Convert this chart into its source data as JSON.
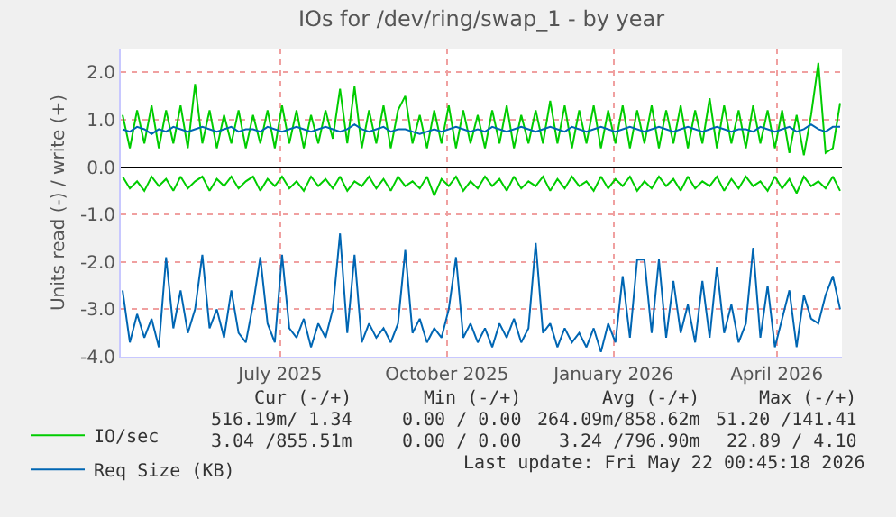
{
  "chart_data": {
    "type": "line",
    "title": "IOs for /dev/ring/swap_1 - by year",
    "ylabel": "Units read (-) / write (+)",
    "x": [
      "2025-04-20",
      "2025-04-24",
      "2025-04-28",
      "2025-05-02",
      "2025-05-06",
      "2025-05-10",
      "2025-05-14",
      "2025-05-18",
      "2025-05-22",
      "2025-05-26",
      "2025-05-30",
      "2025-06-03",
      "2025-06-07",
      "2025-06-11",
      "2025-06-15",
      "2025-06-19",
      "2025-06-23",
      "2025-06-27",
      "2025-07-01",
      "2025-07-05",
      "2025-07-09",
      "2025-07-13",
      "2025-07-17",
      "2025-07-21",
      "2025-07-25",
      "2025-07-29",
      "2025-08-02",
      "2025-08-06",
      "2025-08-10",
      "2025-08-14",
      "2025-08-18",
      "2025-08-22",
      "2025-08-26",
      "2025-08-30",
      "2025-09-03",
      "2025-09-07",
      "2025-09-11",
      "2025-09-15",
      "2025-09-19",
      "2025-09-23",
      "2025-09-27",
      "2025-10-01",
      "2025-10-05",
      "2025-10-09",
      "2025-10-13",
      "2025-10-17",
      "2025-10-21",
      "2025-10-25",
      "2025-10-29",
      "2025-11-02",
      "2025-11-06",
      "2025-11-10",
      "2025-11-14",
      "2025-11-18",
      "2025-11-22",
      "2025-11-26",
      "2025-11-30",
      "2025-12-04",
      "2025-12-08",
      "2025-12-12",
      "2025-12-16",
      "2025-12-20",
      "2025-12-24",
      "2025-12-28",
      "2026-01-01",
      "2026-01-05",
      "2026-01-09",
      "2026-01-13",
      "2026-01-17",
      "2026-01-21",
      "2026-01-25",
      "2026-01-29",
      "2026-02-02",
      "2026-02-06",
      "2026-02-10",
      "2026-02-14",
      "2026-02-18",
      "2026-02-22",
      "2026-02-26",
      "2026-03-02",
      "2026-03-06",
      "2026-03-10",
      "2026-03-14",
      "2026-03-18",
      "2026-03-22",
      "2026-03-26",
      "2026-03-30",
      "2026-04-03",
      "2026-04-07",
      "2026-04-11",
      "2026-04-15",
      "2026-04-19",
      "2026-04-23",
      "2026-04-27",
      "2026-05-01",
      "2026-05-05",
      "2026-05-09",
      "2026-05-13",
      "2026-05-17",
      "2026-05-21"
    ],
    "series": [
      {
        "name": "IO/sec",
        "color": "#00cc00",
        "values": [
          1.1,
          0.4,
          1.2,
          0.5,
          1.3,
          0.4,
          1.2,
          0.5,
          1.3,
          0.4,
          1.75,
          0.5,
          1.2,
          0.4,
          1.1,
          0.5,
          1.2,
          0.4,
          1.1,
          0.5,
          1.2,
          0.4,
          1.3,
          0.5,
          1.2,
          0.4,
          1.1,
          0.5,
          1.2,
          0.6,
          1.65,
          0.5,
          1.7,
          0.4,
          1.2,
          0.5,
          1.3,
          0.4,
          1.2,
          1.5,
          0.5,
          1.1,
          0.4,
          1.2,
          0.5,
          1.3,
          0.4,
          1.2,
          0.5,
          1.1,
          0.4,
          1.2,
          0.5,
          1.3,
          0.4,
          1.1,
          0.5,
          1.2,
          0.5,
          1.4,
          0.5,
          1.3,
          0.4,
          1.2,
          0.5,
          1.3,
          0.4,
          1.2,
          0.5,
          1.3,
          0.4,
          1.2,
          0.5,
          1.3,
          0.4,
          1.2,
          0.5,
          1.3,
          0.4,
          1.2,
          0.5,
          1.45,
          0.4,
          1.3,
          0.5,
          1.2,
          0.4,
          1.3,
          0.5,
          1.2,
          0.4,
          1.2,
          0.3,
          1.1,
          0.25,
          1.1,
          2.2,
          0.3,
          0.4,
          1.35
        ]
      },
      {
        "color": "#00cc00",
        "values": [
          -0.2,
          -0.45,
          -0.3,
          -0.5,
          -0.2,
          -0.4,
          -0.25,
          -0.5,
          -0.2,
          -0.45,
          -0.3,
          -0.2,
          -0.5,
          -0.25,
          -0.4,
          -0.2,
          -0.45,
          -0.3,
          -0.2,
          -0.5,
          -0.25,
          -0.4,
          -0.2,
          -0.45,
          -0.3,
          -0.5,
          -0.2,
          -0.4,
          -0.25,
          -0.45,
          -0.2,
          -0.5,
          -0.3,
          -0.4,
          -0.2,
          -0.45,
          -0.25,
          -0.5,
          -0.2,
          -0.4,
          -0.3,
          -0.45,
          -0.2,
          -0.6,
          -0.25,
          -0.4,
          -0.2,
          -0.5,
          -0.3,
          -0.45,
          -0.2,
          -0.4,
          -0.25,
          -0.5,
          -0.2,
          -0.45,
          -0.3,
          -0.4,
          -0.2,
          -0.5,
          -0.25,
          -0.45,
          -0.2,
          -0.4,
          -0.3,
          -0.5,
          -0.2,
          -0.45,
          -0.25,
          -0.4,
          -0.2,
          -0.5,
          -0.3,
          -0.45,
          -0.2,
          -0.4,
          -0.25,
          -0.5,
          -0.2,
          -0.45,
          -0.3,
          -0.4,
          -0.2,
          -0.5,
          -0.25,
          -0.45,
          -0.2,
          -0.4,
          -0.3,
          -0.5,
          -0.2,
          -0.45,
          -0.25,
          -0.55,
          -0.2,
          -0.4,
          -0.3,
          -0.45,
          -0.2,
          -0.5
        ]
      },
      {
        "name": "Req Size (KB)",
        "color": "#0066b3",
        "values": [
          0.8,
          0.75,
          0.85,
          0.8,
          0.7,
          0.8,
          0.75,
          0.85,
          0.8,
          0.75,
          0.8,
          0.85,
          0.8,
          0.75,
          0.8,
          0.85,
          0.75,
          0.8,
          0.8,
          0.75,
          0.85,
          0.8,
          0.75,
          0.8,
          0.85,
          0.8,
          0.75,
          0.8,
          0.85,
          0.8,
          0.75,
          0.8,
          0.9,
          0.8,
          0.75,
          0.8,
          0.85,
          0.75,
          0.8,
          0.8,
          0.75,
          0.7,
          0.75,
          0.8,
          0.75,
          0.8,
          0.85,
          0.8,
          0.75,
          0.8,
          0.75,
          0.85,
          0.8,
          0.75,
          0.8,
          0.85,
          0.8,
          0.75,
          0.8,
          0.85,
          0.8,
          0.75,
          0.85,
          0.8,
          0.75,
          0.8,
          0.85,
          0.8,
          0.75,
          0.8,
          0.85,
          0.8,
          0.75,
          0.8,
          0.85,
          0.8,
          0.75,
          0.8,
          0.85,
          0.8,
          0.75,
          0.8,
          0.85,
          0.8,
          0.75,
          0.8,
          0.8,
          0.75,
          0.85,
          0.8,
          0.75,
          0.8,
          0.85,
          0.75,
          0.8,
          0.9,
          0.8,
          0.75,
          0.85,
          0.85
        ]
      },
      {
        "color": "#0066b3",
        "values": [
          -2.6,
          -3.7,
          -3.1,
          -3.6,
          -3.2,
          -3.8,
          -1.9,
          -3.4,
          -2.6,
          -3.5,
          -3.0,
          -1.85,
          -3.4,
          -3.0,
          -3.6,
          -2.6,
          -3.5,
          -3.7,
          -2.9,
          -1.9,
          -3.3,
          -3.7,
          -1.85,
          -3.4,
          -3.6,
          -3.2,
          -3.8,
          -3.3,
          -3.6,
          -3.0,
          -1.4,
          -3.5,
          -1.85,
          -3.7,
          -3.3,
          -3.6,
          -3.4,
          -3.7,
          -3.3,
          -1.75,
          -3.5,
          -3.2,
          -3.7,
          -3.4,
          -3.6,
          -3.0,
          -1.9,
          -3.6,
          -3.3,
          -3.7,
          -3.4,
          -3.8,
          -3.3,
          -3.6,
          -3.2,
          -3.7,
          -3.4,
          -1.6,
          -3.5,
          -3.3,
          -3.8,
          -3.4,
          -3.7,
          -3.5,
          -3.8,
          -3.4,
          -3.9,
          -3.3,
          -3.7,
          -2.3,
          -3.6,
          -1.95,
          -1.95,
          -3.5,
          -1.95,
          -3.6,
          -2.4,
          -3.5,
          -2.9,
          -3.7,
          -2.4,
          -3.6,
          -2.1,
          -3.5,
          -2.9,
          -3.7,
          -3.3,
          -1.7,
          -3.6,
          -2.5,
          -3.8,
          -3.2,
          -2.6,
          -3.8,
          -2.7,
          -3.2,
          -3.3,
          -2.7,
          -2.3,
          -3.0
        ]
      }
    ],
    "xlim": [
      "2025-04-19",
      "2026-05-22"
    ],
    "xticks": [
      {
        "value": "2025-07-16",
        "label": "July 2025"
      },
      {
        "value": "2025-10-16",
        "label": "October 2025"
      },
      {
        "value": "2026-01-16",
        "label": "January 2026"
      },
      {
        "value": "2026-04-16",
        "label": "April 2026"
      }
    ],
    "ylim": [
      -4,
      2.5
    ],
    "yticks": [
      {
        "value": 2,
        "label": "2.0"
      },
      {
        "value": 1,
        "label": "1.0"
      },
      {
        "value": 0,
        "label": "0.0"
      },
      {
        "value": -1,
        "label": "-1.0"
      },
      {
        "value": -2,
        "label": "-2.0"
      },
      {
        "value": -3,
        "label": "-3.0"
      },
      {
        "value": -4,
        "label": "-4.0"
      }
    ],
    "grid": true,
    "legend": "bottom left",
    "marker": "none",
    "line_style": "solid",
    "annotations": [
      "Cur (-/+)",
      "Min (-/+)",
      "Avg (-/+)",
      "Max (-/+)",
      "516.19m/ 1.34",
      "0.00 / 0.00",
      "264.09m/858.62m",
      "51.20 /141.41",
      "3.04 /855.51m",
      "0.00 / 0.00",
      "3.24 /796.90m",
      "22.89 / 4.10",
      "Last update: Fri May 22 00:45:18 2026"
    ]
  }
}
